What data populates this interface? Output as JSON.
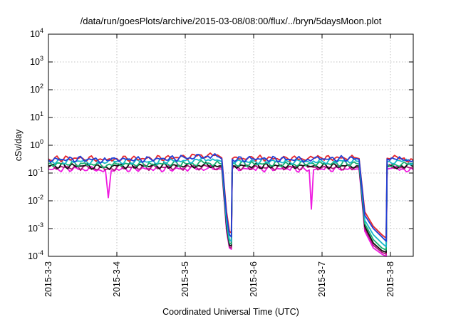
{
  "chart_data": {
    "type": "line",
    "title": "/data/run/goesPlots/archive/2015-03-08/08:00/flux/../bryn/5daysMoon.plot",
    "xlabel": "Coordinated Universal Time (UTC)",
    "ylabel": "cSv/day",
    "yscale": "log",
    "ylim": [
      0.0001,
      10000
    ],
    "y_ticks": [
      {
        "base": "10",
        "exp": "-4",
        "value": 0.0001
      },
      {
        "base": "10",
        "exp": "-3",
        "value": 0.001
      },
      {
        "base": "10",
        "exp": "-2",
        "value": 0.01
      },
      {
        "base": "10",
        "exp": "-1",
        "value": 0.1
      },
      {
        "base": "10",
        "exp": "0",
        "value": 1
      },
      {
        "base": "10",
        "exp": "1",
        "value": 10
      },
      {
        "base": "10",
        "exp": "2",
        "value": 100
      },
      {
        "base": "10",
        "exp": "3",
        "value": 1000
      },
      {
        "base": "10",
        "exp": "4",
        "value": 10000
      }
    ],
    "xlim": [
      "2015-03-03T00:00",
      "2015-03-08T08:00"
    ],
    "x_ticks": [
      "2015-3-3",
      "2015-3-4",
      "2015-3-5",
      "2015-3-6",
      "2015-3-7",
      "2015-3-8"
    ],
    "grid": true,
    "legend": "none",
    "series_colors": [
      "#e8262b",
      "#1f3fd6",
      "#16b8c9",
      "#18b070",
      "#111111",
      "#b0187a",
      "#ef1ae0"
    ],
    "series": [
      {
        "values": [
          [
            "2015-03-03T00:00",
            0.32
          ],
          [
            "2015-03-03T12:00",
            0.34
          ],
          [
            "2015-03-03T20:30",
            0.3
          ],
          [
            "2015-03-04T00:00",
            0.33
          ],
          [
            "2015-03-04T12:00",
            0.33
          ],
          [
            "2015-03-05T00:00",
            0.38
          ],
          [
            "2015-03-05T08:00",
            0.45
          ],
          [
            "2015-03-05T12:00",
            0.4
          ],
          [
            "2015-03-05T12:50",
            0.35
          ],
          [
            "2015-03-05T14:30",
            0.004
          ],
          [
            "2015-03-05T15:30",
            0.0008
          ],
          [
            "2015-03-05T16:10",
            0.0007
          ],
          [
            "2015-03-05T16:30",
            0.33
          ],
          [
            "2015-03-06T00:00",
            0.34
          ],
          [
            "2015-03-06T12:00",
            0.33
          ],
          [
            "2015-03-06T19:00",
            0.33
          ],
          [
            "2015-03-06T21:00",
            0.35
          ],
          [
            "2015-03-07T00:00",
            0.34
          ],
          [
            "2015-03-07T12:00",
            0.35
          ],
          [
            "2015-03-07T13:00",
            0.33
          ],
          [
            "2015-03-07T15:00",
            0.004
          ],
          [
            "2015-03-07T18:00",
            0.0012
          ],
          [
            "2015-03-07T21:00",
            0.0006
          ],
          [
            "2015-03-07T22:30",
            0.00045
          ],
          [
            "2015-03-07T22:50",
            0.34
          ],
          [
            "2015-03-08T04:00",
            0.33
          ],
          [
            "2015-03-08T08:00",
            0.3
          ]
        ]
      },
      {
        "values": [
          [
            "2015-03-03T00:00",
            0.3
          ],
          [
            "2015-03-03T12:00",
            0.32
          ],
          [
            "2015-03-03T20:30",
            0.28
          ],
          [
            "2015-03-04T00:00",
            0.31
          ],
          [
            "2015-03-04T12:00",
            0.31
          ],
          [
            "2015-03-05T00:00",
            0.35
          ],
          [
            "2015-03-05T08:00",
            0.4
          ],
          [
            "2015-03-05T12:00",
            0.37
          ],
          [
            "2015-03-05T12:50",
            0.32
          ],
          [
            "2015-03-05T14:30",
            0.003
          ],
          [
            "2015-03-05T15:30",
            0.0006
          ],
          [
            "2015-03-05T16:10",
            0.0005
          ],
          [
            "2015-03-05T16:30",
            0.31
          ],
          [
            "2015-03-06T00:00",
            0.32
          ],
          [
            "2015-03-06T12:00",
            0.31
          ],
          [
            "2015-03-06T19:00",
            0.31
          ],
          [
            "2015-03-06T21:00",
            0.33
          ],
          [
            "2015-03-07T00:00",
            0.32
          ],
          [
            "2015-03-07T12:00",
            0.33
          ],
          [
            "2015-03-07T13:00",
            0.31
          ],
          [
            "2015-03-07T15:00",
            0.003
          ],
          [
            "2015-03-07T18:00",
            0.001
          ],
          [
            "2015-03-07T21:00",
            0.0005
          ],
          [
            "2015-03-07T22:30",
            0.00035
          ],
          [
            "2015-03-07T22:50",
            0.32
          ],
          [
            "2015-03-08T04:00",
            0.31
          ],
          [
            "2015-03-08T08:00",
            0.28
          ]
        ]
      },
      {
        "values": [
          [
            "2015-03-03T00:00",
            0.26
          ],
          [
            "2015-03-03T12:00",
            0.27
          ],
          [
            "2015-03-03T20:30",
            0.24
          ],
          [
            "2015-03-04T00:00",
            0.26
          ],
          [
            "2015-03-04T12:00",
            0.26
          ],
          [
            "2015-03-05T00:00",
            0.28
          ],
          [
            "2015-03-05T08:00",
            0.3
          ],
          [
            "2015-03-05T12:00",
            0.28
          ],
          [
            "2015-03-05T12:50",
            0.26
          ],
          [
            "2015-03-05T14:30",
            0.002
          ],
          [
            "2015-03-05T15:30",
            0.0004
          ],
          [
            "2015-03-05T16:10",
            0.00035
          ],
          [
            "2015-03-05T16:30",
            0.26
          ],
          [
            "2015-03-06T00:00",
            0.27
          ],
          [
            "2015-03-06T12:00",
            0.26
          ],
          [
            "2015-03-06T19:00",
            0.26
          ],
          [
            "2015-03-06T21:00",
            0.27
          ],
          [
            "2015-03-07T00:00",
            0.27
          ],
          [
            "2015-03-07T12:00",
            0.27
          ],
          [
            "2015-03-07T13:00",
            0.26
          ],
          [
            "2015-03-07T15:00",
            0.002
          ],
          [
            "2015-03-07T18:00",
            0.0006
          ],
          [
            "2015-03-07T21:00",
            0.0003
          ],
          [
            "2015-03-07T22:30",
            0.00022
          ],
          [
            "2015-03-07T22:50",
            0.26
          ],
          [
            "2015-03-08T04:00",
            0.26
          ],
          [
            "2015-03-08T08:00",
            0.24
          ]
        ]
      },
      {
        "values": [
          [
            "2015-03-03T00:00",
            0.21
          ],
          [
            "2015-03-03T12:00",
            0.22
          ],
          [
            "2015-03-03T20:30",
            0.19
          ],
          [
            "2015-03-04T00:00",
            0.21
          ],
          [
            "2015-03-04T12:00",
            0.21
          ],
          [
            "2015-03-05T00:00",
            0.22
          ],
          [
            "2015-03-05T08:00",
            0.23
          ],
          [
            "2015-03-05T12:00",
            0.22
          ],
          [
            "2015-03-05T12:50",
            0.21
          ],
          [
            "2015-03-05T14:30",
            0.0015
          ],
          [
            "2015-03-05T15:30",
            0.0003
          ],
          [
            "2015-03-05T16:10",
            0.00028
          ],
          [
            "2015-03-05T16:30",
            0.21
          ],
          [
            "2015-03-06T00:00",
            0.22
          ],
          [
            "2015-03-06T12:00",
            0.21
          ],
          [
            "2015-03-06T19:00",
            0.21
          ],
          [
            "2015-03-06T21:00",
            0.22
          ],
          [
            "2015-03-07T00:00",
            0.22
          ],
          [
            "2015-03-07T12:00",
            0.22
          ],
          [
            "2015-03-07T13:00",
            0.21
          ],
          [
            "2015-03-07T15:00",
            0.0015
          ],
          [
            "2015-03-07T18:00",
            0.0004
          ],
          [
            "2015-03-07T21:00",
            0.0002
          ],
          [
            "2015-03-07T22:30",
            0.00017
          ],
          [
            "2015-03-07T22:50",
            0.21
          ],
          [
            "2015-03-08T04:00",
            0.21
          ],
          [
            "2015-03-08T08:00",
            0.2
          ]
        ]
      },
      {
        "values": [
          [
            "2015-03-03T00:00",
            0.18
          ],
          [
            "2015-03-03T12:00",
            0.18
          ],
          [
            "2015-03-03T20:30",
            0.16
          ],
          [
            "2015-03-04T00:00",
            0.18
          ],
          [
            "2015-03-04T12:00",
            0.18
          ],
          [
            "2015-03-05T00:00",
            0.18
          ],
          [
            "2015-03-05T08:00",
            0.19
          ],
          [
            "2015-03-05T12:00",
            0.18
          ],
          [
            "2015-03-05T12:50",
            0.18
          ],
          [
            "2015-03-05T14:30",
            0.0012
          ],
          [
            "2015-03-05T15:30",
            0.00025
          ],
          [
            "2015-03-05T16:10",
            0.00024
          ],
          [
            "2015-03-05T16:30",
            0.18
          ],
          [
            "2015-03-06T00:00",
            0.18
          ],
          [
            "2015-03-06T12:00",
            0.18
          ],
          [
            "2015-03-06T19:00",
            0.18
          ],
          [
            "2015-03-06T21:00",
            0.18
          ],
          [
            "2015-03-07T00:00",
            0.18
          ],
          [
            "2015-03-07T12:00",
            0.18
          ],
          [
            "2015-03-07T13:00",
            0.18
          ],
          [
            "2015-03-07T15:00",
            0.0012
          ],
          [
            "2015-03-07T18:00",
            0.0003
          ],
          [
            "2015-03-07T21:00",
            0.00016
          ],
          [
            "2015-03-07T22:30",
            0.00014
          ],
          [
            "2015-03-07T22:50",
            0.18
          ],
          [
            "2015-03-08T04:00",
            0.18
          ],
          [
            "2015-03-08T08:00",
            0.17
          ]
        ]
      },
      {
        "values": [
          [
            "2015-03-03T00:00",
            0.16
          ],
          [
            "2015-03-03T12:00",
            0.16
          ],
          [
            "2015-03-03T20:30",
            0.14
          ],
          [
            "2015-03-04T00:00",
            0.16
          ],
          [
            "2015-03-04T12:00",
            0.16
          ],
          [
            "2015-03-05T00:00",
            0.16
          ],
          [
            "2015-03-05T08:00",
            0.17
          ],
          [
            "2015-03-05T12:00",
            0.16
          ],
          [
            "2015-03-05T12:50",
            0.16
          ],
          [
            "2015-03-05T14:30",
            0.001
          ],
          [
            "2015-03-05T15:30",
            0.00022
          ],
          [
            "2015-03-05T16:10",
            0.0002
          ],
          [
            "2015-03-05T16:30",
            0.16
          ],
          [
            "2015-03-06T00:00",
            0.16
          ],
          [
            "2015-03-06T12:00",
            0.16
          ],
          [
            "2015-03-06T19:00",
            0.16
          ],
          [
            "2015-03-06T21:00",
            0.16
          ],
          [
            "2015-03-07T00:00",
            0.16
          ],
          [
            "2015-03-07T12:00",
            0.16
          ],
          [
            "2015-03-07T13:00",
            0.16
          ],
          [
            "2015-03-07T15:00",
            0.001
          ],
          [
            "2015-03-07T18:00",
            0.00025
          ],
          [
            "2015-03-07T21:00",
            0.00014
          ],
          [
            "2015-03-07T22:30",
            0.00012
          ],
          [
            "2015-03-07T22:50",
            0.16
          ],
          [
            "2015-03-08T04:00",
            0.16
          ],
          [
            "2015-03-08T08:00",
            0.15
          ]
        ]
      },
      {
        "values": [
          [
            "2015-03-03T00:00",
            0.14
          ],
          [
            "2015-03-03T12:00",
            0.14
          ],
          [
            "2015-03-03T20:00",
            0.13
          ],
          [
            "2015-03-03T21:00",
            0.013
          ],
          [
            "2015-03-03T22:00",
            0.12
          ],
          [
            "2015-03-04T00:00",
            0.14
          ],
          [
            "2015-03-04T12:00",
            0.14
          ],
          [
            "2015-03-05T00:00",
            0.14
          ],
          [
            "2015-03-05T08:00",
            0.15
          ],
          [
            "2015-03-05T12:00",
            0.14
          ],
          [
            "2015-03-05T12:50",
            0.14
          ],
          [
            "2015-03-05T14:30",
            0.0008
          ],
          [
            "2015-03-05T15:30",
            0.0002
          ],
          [
            "2015-03-05T16:10",
            0.00018
          ],
          [
            "2015-03-05T16:30",
            0.14
          ],
          [
            "2015-03-06T00:00",
            0.14
          ],
          [
            "2015-03-06T12:00",
            0.14
          ],
          [
            "2015-03-06T19:30",
            0.13
          ],
          [
            "2015-03-06T20:15",
            0.005
          ],
          [
            "2015-03-06T21:00",
            0.13
          ],
          [
            "2015-03-07T00:00",
            0.14
          ],
          [
            "2015-03-07T12:00",
            0.14
          ],
          [
            "2015-03-07T13:00",
            0.14
          ],
          [
            "2015-03-07T15:00",
            0.0008
          ],
          [
            "2015-03-07T18:00",
            0.0002
          ],
          [
            "2015-03-07T21:00",
            0.00012
          ],
          [
            "2015-03-07T22:30",
            0.0001
          ],
          [
            "2015-03-07T22:50",
            0.14
          ],
          [
            "2015-03-08T04:00",
            0.14
          ],
          [
            "2015-03-08T08:00",
            0.13
          ]
        ]
      }
    ]
  }
}
